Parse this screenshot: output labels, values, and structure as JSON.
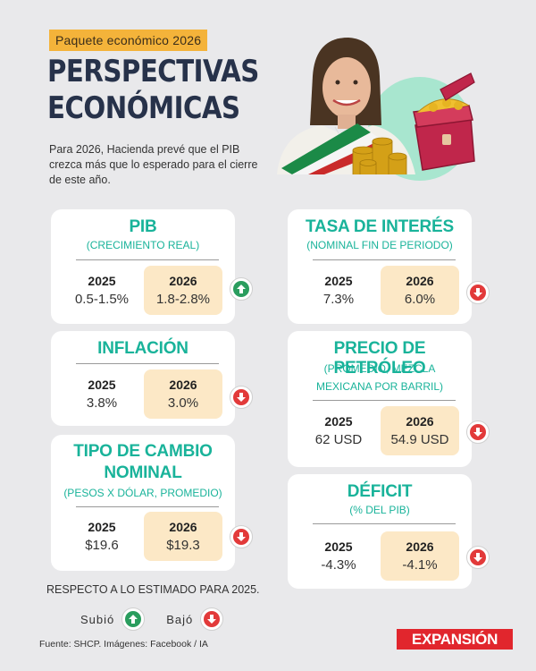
{
  "header": {
    "tag": "Paquete económico 2026",
    "title_line1": "PERSPECTIVAS",
    "title_line2": "ECONÓMICAS",
    "intro": "Para 2026, Hacienda prevé que el PIB crezca más que lo esperado para el cierre de este año."
  },
  "cards": {
    "pib": {
      "title": "PIB",
      "subtitle": "(CRECIMIENTO REAL)",
      "year_a": "2025",
      "value_a": "0.5-1.5%",
      "year_b": "2026",
      "value_b": "1.8-2.8%",
      "trend": "up"
    },
    "inflacion": {
      "title": "INFLACIÓN",
      "year_a": "2025",
      "value_a": "3.8%",
      "year_b": "2026",
      "value_b": "3.0%",
      "trend": "down"
    },
    "tipo_cambio": {
      "title_line1": "TIPO DE CAMBIO",
      "title_line2": "NOMINAL",
      "subtitle": "(PESOS X DÓLAR, PROMEDIO)",
      "year_a": "2025",
      "value_a": "$19.6",
      "year_b": "2026",
      "value_b": "$19.3",
      "trend": "down"
    },
    "tasa": {
      "title": "TASA DE INTERÉS",
      "subtitle": "(NOMINAL FIN DE PERIODO)",
      "year_a": "2025",
      "value_a": "7.3%",
      "year_b": "2026",
      "value_b": "6.0%",
      "trend": "down"
    },
    "petroleo": {
      "title": "PRECIO DE PETRÓLEO",
      "subtitle_line1": "(PROMEDIO, MEZCLA",
      "subtitle_line2": "MEXICANA POR BARRIL)",
      "year_a": "2025",
      "value_a": "62 USD",
      "year_b": "2026",
      "value_b": "54.9 USD",
      "trend": "down"
    },
    "deficit": {
      "title": "DÉFICIT",
      "subtitle": "(% DEL PIB)",
      "year_a": "2025",
      "value_a": "-4.3%",
      "year_b": "2026",
      "value_b": "-4.1%",
      "trend": "down"
    }
  },
  "legend": {
    "note": "RESPECTO A LO ESTIMADO PARA 2025.",
    "up_label": "Subió",
    "down_label": "Bajó"
  },
  "footer": {
    "source": "Fuente: SHCP.  Imágenes: Facebook / IA",
    "brand": "EXPANSIÓN"
  },
  "colors": {
    "teal": "#19b39a",
    "up": "#2a9d5e",
    "down": "#e23a3a",
    "highlight": "#fce8c6",
    "title": "#27324a",
    "tag": "#f4b33a",
    "brand": "#e1262d"
  },
  "icons": {
    "up": "arrow-up-icon",
    "down": "arrow-down-icon"
  }
}
